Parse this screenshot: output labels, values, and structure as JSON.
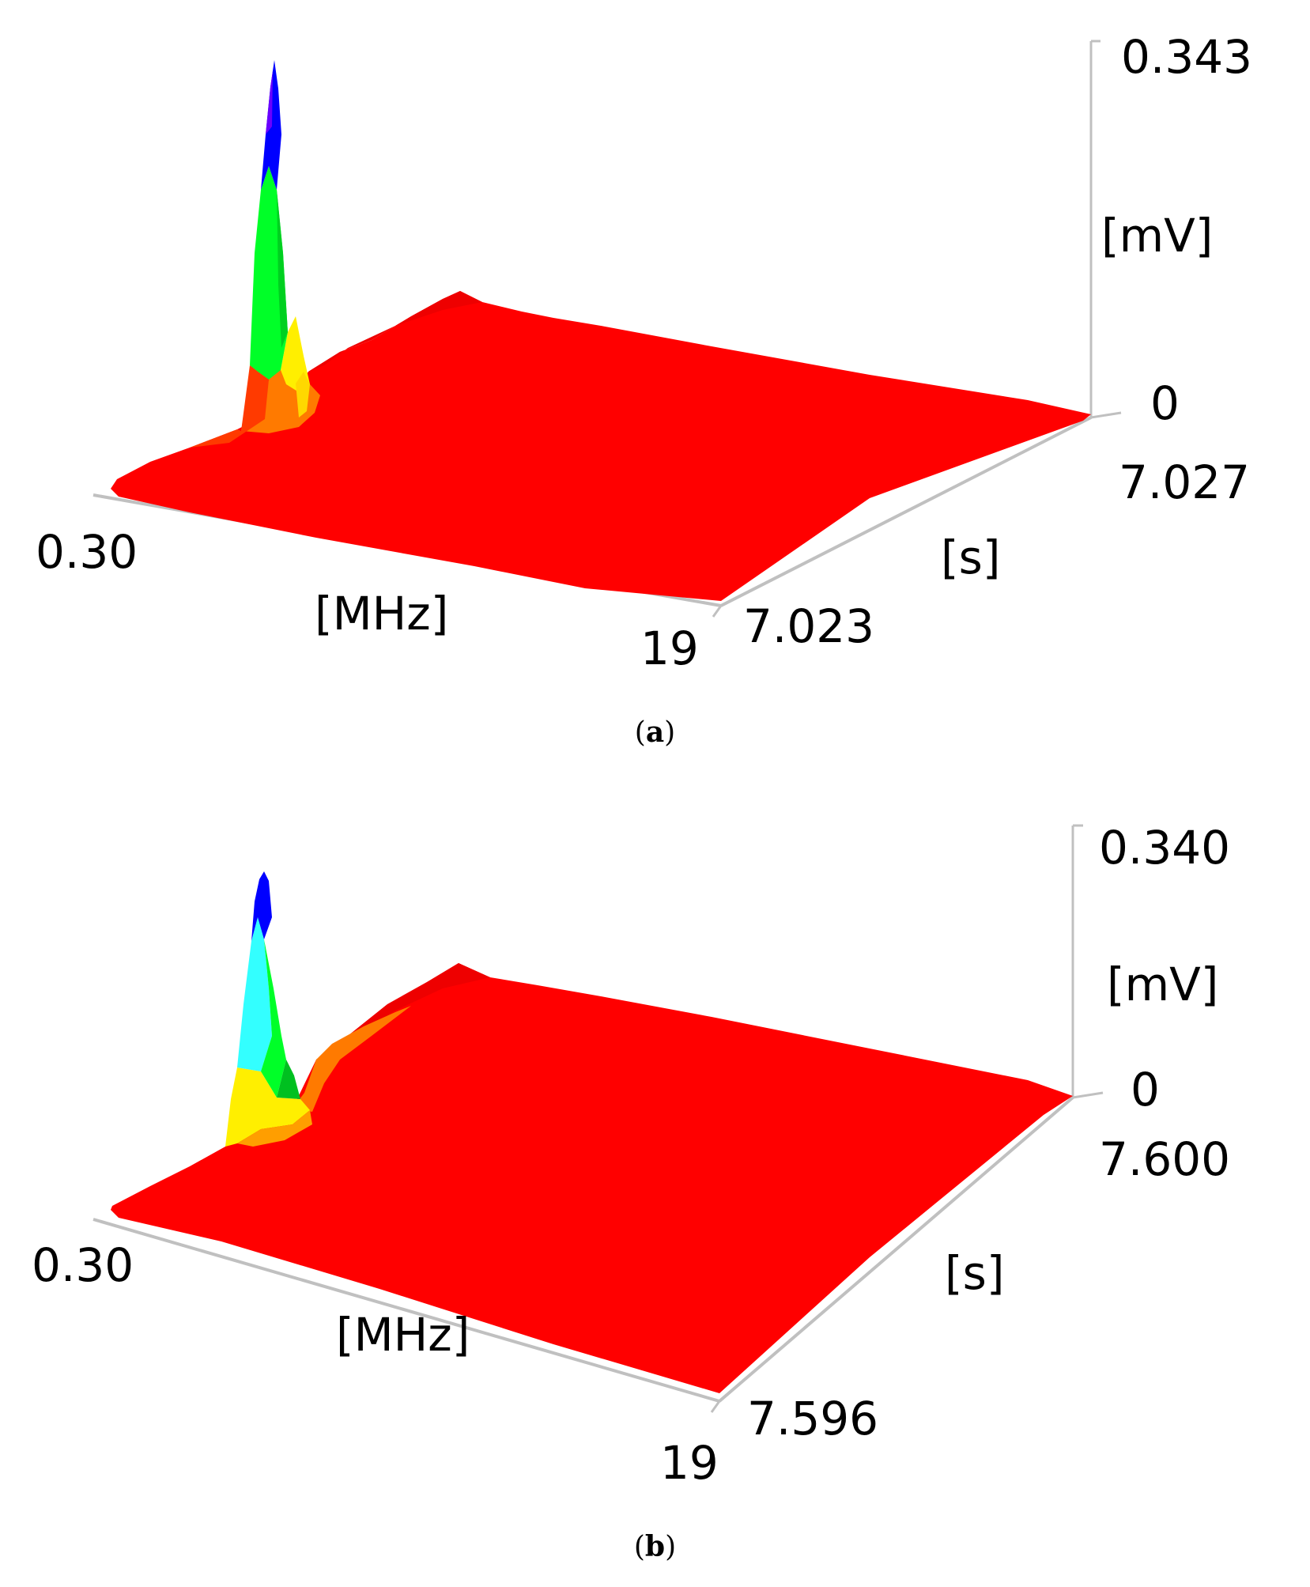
{
  "colors": {
    "surface": "#ff0000",
    "surface_edge": "#e60000",
    "orange": "#ff7a00",
    "yellow": "#ffef00",
    "green": "#00ff28",
    "cyan": "#33ffff",
    "blue": "#0000ff",
    "axis": "#c0c0c0"
  },
  "chart_data": [
    {
      "type": "surface3d",
      "panel_label": "a",
      "x_axis": {
        "label": "[MHz]",
        "range": [
          0.3,
          19
        ],
        "tick_labels": [
          "0.30",
          "19"
        ]
      },
      "y_axis": {
        "label": "[s]",
        "range": [
          7.023,
          7.027
        ],
        "tick_labels": [
          "7.023",
          "7.027"
        ]
      },
      "z_axis": {
        "label": "[mV]",
        "range": [
          0,
          0.343
        ],
        "tick_labels": [
          "0",
          "0.343"
        ]
      },
      "peak": {
        "frequency_mhz": 0.7,
        "time_s": 7.027,
        "amplitude_mv": 0.343
      },
      "colormap_bands": [
        "red",
        "orange",
        "yellow",
        "green",
        "blue"
      ]
    },
    {
      "type": "surface3d",
      "panel_label": "b",
      "x_axis": {
        "label": "[MHz]",
        "range": [
          0.3,
          19
        ],
        "tick_labels": [
          "0.30",
          "19"
        ]
      },
      "y_axis": {
        "label": "[s]",
        "range": [
          7.596,
          7.6
        ],
        "tick_labels": [
          "7.596",
          "7.600"
        ]
      },
      "z_axis": {
        "label": "[mV]",
        "range": [
          0,
          0.34
        ],
        "tick_labels": [
          "0",
          "0.340"
        ]
      },
      "peak": {
        "frequency_mhz": 0.7,
        "time_s": 7.6,
        "amplitude_mv": 0.34
      },
      "colormap_bands": [
        "red",
        "orange",
        "yellow",
        "green",
        "cyan",
        "blue"
      ]
    }
  ]
}
